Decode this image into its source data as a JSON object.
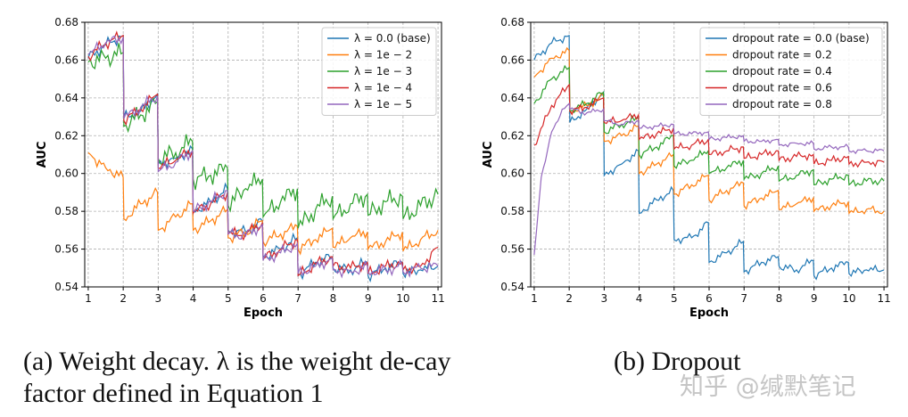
{
  "figure": {
    "caption_a_prefix": "(a)",
    "caption_a_text": "Weight decay. λ is the weight de-cay factor defined in Equation 1",
    "caption_b_prefix": "(b)",
    "caption_b_text": "Dropout",
    "watermark": "知乎 @缄默笔记"
  },
  "chart_data": [
    {
      "type": "line",
      "title": "",
      "xlabel": "Epoch",
      "ylabel": "AUC",
      "xlim": [
        0.9,
        11.1
      ],
      "ylim": [
        0.54,
        0.68
      ],
      "xticks": [
        1,
        2,
        3,
        4,
        5,
        6,
        7,
        8,
        9,
        10,
        11
      ],
      "yticks": [
        0.54,
        0.56,
        0.58,
        0.6,
        0.62,
        0.64,
        0.66,
        0.68
      ],
      "grid": true,
      "legend_position": "top-right",
      "series": [
        {
          "name": "λ = 0.0 (base)",
          "color": "#1f77b4",
          "x": [
            1,
            1.5,
            2,
            2.02,
            2.5,
            2.98,
            3,
            3.5,
            3.98,
            4,
            4.5,
            4.98,
            5,
            5.5,
            5.98,
            6,
            6.5,
            6.98,
            7,
            7.5,
            7.98,
            8,
            8.5,
            8.98,
            9,
            9.5,
            9.98,
            10,
            10.5,
            11
          ],
          "y": [
            0.661,
            0.668,
            0.673,
            0.63,
            0.633,
            0.642,
            0.605,
            0.608,
            0.613,
            0.58,
            0.585,
            0.592,
            0.57,
            0.569,
            0.575,
            0.556,
            0.56,
            0.566,
            0.546,
            0.553,
            0.556,
            0.55,
            0.549,
            0.553,
            0.546,
            0.55,
            0.553,
            0.547,
            0.549,
            0.551
          ]
        },
        {
          "name": "λ = 1e − 2",
          "color": "#ff7f0e",
          "x": [
            1,
            1.5,
            2,
            2.02,
            2.5,
            2.98,
            3,
            3.5,
            3.98,
            4,
            4.5,
            4.98,
            5,
            5.5,
            5.98,
            6,
            6.5,
            6.98,
            7,
            7.5,
            7.98,
            8,
            8.5,
            8.98,
            9,
            9.5,
            9.98,
            10,
            10.5,
            11
          ],
          "y": [
            0.611,
            0.603,
            0.598,
            0.576,
            0.584,
            0.59,
            0.57,
            0.577,
            0.584,
            0.57,
            0.575,
            0.581,
            0.566,
            0.569,
            0.575,
            0.564,
            0.568,
            0.572,
            0.56,
            0.565,
            0.571,
            0.561,
            0.566,
            0.569,
            0.56,
            0.564,
            0.569,
            0.559,
            0.565,
            0.57
          ]
        },
        {
          "name": "λ = 1e − 3",
          "color": "#2ca02c",
          "x": [
            1,
            1.5,
            2,
            2.02,
            2.5,
            2.98,
            3,
            3.5,
            3.98,
            4,
            4.5,
            4.98,
            5,
            5.5,
            5.98,
            6,
            6.5,
            6.98,
            7,
            7.5,
            7.98,
            8,
            8.5,
            8.98,
            9,
            9.5,
            9.98,
            10,
            10.5,
            11
          ],
          "y": [
            0.659,
            0.661,
            0.664,
            0.625,
            0.631,
            0.638,
            0.608,
            0.611,
            0.617,
            0.597,
            0.599,
            0.603,
            0.583,
            0.592,
            0.597,
            0.577,
            0.585,
            0.592,
            0.571,
            0.581,
            0.588,
            0.576,
            0.584,
            0.589,
            0.578,
            0.585,
            0.588,
            0.576,
            0.583,
            0.589
          ]
        },
        {
          "name": "λ = 1e − 4",
          "color": "#d62728",
          "x": [
            1,
            1.5,
            2,
            2.02,
            2.5,
            2.98,
            3,
            3.5,
            3.98,
            4,
            4.5,
            4.98,
            5,
            5.5,
            5.98,
            6,
            6.5,
            6.98,
            7,
            7.5,
            7.98,
            8,
            8.5,
            8.98,
            9,
            9.5,
            9.98,
            10,
            10.5,
            11
          ],
          "y": [
            0.662,
            0.669,
            0.673,
            0.628,
            0.634,
            0.642,
            0.603,
            0.607,
            0.612,
            0.579,
            0.584,
            0.59,
            0.568,
            0.568,
            0.574,
            0.555,
            0.56,
            0.565,
            0.546,
            0.552,
            0.556,
            0.551,
            0.55,
            0.553,
            0.547,
            0.551,
            0.553,
            0.549,
            0.551,
            0.561
          ]
        },
        {
          "name": "λ = 1e − 5",
          "color": "#9467bd",
          "x": [
            1,
            1.5,
            2,
            2.02,
            2.5,
            2.98,
            3,
            3.5,
            3.98,
            4,
            4.5,
            4.98,
            5,
            5.5,
            5.98,
            6,
            6.5,
            6.98,
            7,
            7.5,
            7.98,
            8,
            8.5,
            8.98,
            9,
            9.5,
            9.98,
            10,
            10.5,
            11
          ],
          "y": [
            0.663,
            0.669,
            0.672,
            0.629,
            0.635,
            0.641,
            0.601,
            0.606,
            0.612,
            0.58,
            0.585,
            0.591,
            0.568,
            0.567,
            0.573,
            0.554,
            0.558,
            0.563,
            0.547,
            0.551,
            0.555,
            0.549,
            0.548,
            0.551,
            0.548,
            0.549,
            0.551,
            0.548,
            0.55,
            0.551
          ]
        }
      ]
    },
    {
      "type": "line",
      "title": "",
      "xlabel": "Epoch",
      "ylabel": "AUC",
      "xlim": [
        0.9,
        11.1
      ],
      "ylim": [
        0.54,
        0.68
      ],
      "xticks": [
        1,
        2,
        3,
        4,
        5,
        6,
        7,
        8,
        9,
        10,
        11
      ],
      "yticks": [
        0.54,
        0.56,
        0.58,
        0.6,
        0.62,
        0.64,
        0.66,
        0.68
      ],
      "grid": true,
      "legend_position": "top-right",
      "series": [
        {
          "name": "dropout rate = 0.0 (base)",
          "color": "#1f77b4",
          "x": [
            1,
            1.5,
            2,
            2.02,
            2.5,
            2.98,
            3,
            3.5,
            3.98,
            4,
            4.5,
            4.98,
            5,
            5.5,
            5.98,
            6,
            6.5,
            6.98,
            7,
            7.5,
            7.98,
            8,
            8.5,
            8.98,
            9,
            9.5,
            9.98,
            10,
            10.5,
            11
          ],
          "y": [
            0.66,
            0.669,
            0.673,
            0.627,
            0.634,
            0.643,
            0.599,
            0.605,
            0.612,
            0.579,
            0.586,
            0.591,
            0.565,
            0.566,
            0.574,
            0.553,
            0.558,
            0.564,
            0.548,
            0.553,
            0.556,
            0.551,
            0.549,
            0.554,
            0.546,
            0.55,
            0.553,
            0.547,
            0.549,
            0.549
          ]
        },
        {
          "name": "dropout rate = 0.2",
          "color": "#ff7f0e",
          "x": [
            1,
            1.5,
            2,
            2.02,
            2.5,
            2.98,
            3,
            3.5,
            3.98,
            4,
            4.5,
            4.98,
            5,
            5.5,
            5.98,
            6,
            6.5,
            6.98,
            7,
            7.5,
            7.98,
            8,
            8.5,
            8.98,
            9,
            9.5,
            9.98,
            10,
            10.5,
            11
          ],
          "y": [
            0.651,
            0.661,
            0.665,
            0.633,
            0.636,
            0.641,
            0.617,
            0.62,
            0.625,
            0.6,
            0.605,
            0.61,
            0.589,
            0.594,
            0.599,
            0.586,
            0.591,
            0.595,
            0.583,
            0.587,
            0.591,
            0.581,
            0.584,
            0.587,
            0.58,
            0.583,
            0.585,
            0.579,
            0.581,
            0.58
          ]
        },
        {
          "name": "dropout rate = 0.4",
          "color": "#2ca02c",
          "x": [
            1,
            1.5,
            2,
            2.02,
            2.5,
            2.98,
            3,
            3.5,
            3.98,
            4,
            4.5,
            4.98,
            5,
            5.5,
            5.98,
            6,
            6.5,
            6.98,
            7,
            7.5,
            7.98,
            8,
            8.5,
            8.98,
            9,
            9.5,
            9.98,
            10,
            10.5,
            11
          ],
          "y": [
            0.637,
            0.65,
            0.656,
            0.633,
            0.637,
            0.643,
            0.622,
            0.626,
            0.629,
            0.61,
            0.614,
            0.62,
            0.604,
            0.607,
            0.612,
            0.6,
            0.603,
            0.607,
            0.597,
            0.6,
            0.604,
            0.596,
            0.599,
            0.602,
            0.594,
            0.597,
            0.599,
            0.594,
            0.596,
            0.596
          ]
        },
        {
          "name": "dropout rate = 0.6",
          "color": "#d62728",
          "x": [
            1,
            1.5,
            2,
            2.02,
            2.5,
            2.98,
            3,
            3.5,
            3.98,
            4,
            4.5,
            4.98,
            5,
            5.5,
            5.98,
            6,
            6.5,
            6.98,
            7,
            7.5,
            7.98,
            8,
            8.5,
            8.98,
            9,
            9.5,
            9.98,
            10,
            10.5,
            11
          ],
          "y": [
            0.615,
            0.636,
            0.647,
            0.633,
            0.635,
            0.64,
            0.627,
            0.628,
            0.631,
            0.618,
            0.621,
            0.624,
            0.613,
            0.615,
            0.618,
            0.61,
            0.612,
            0.614,
            0.608,
            0.61,
            0.612,
            0.607,
            0.609,
            0.61,
            0.605,
            0.607,
            0.609,
            0.605,
            0.606,
            0.606
          ]
        },
        {
          "name": "dropout rate = 0.8",
          "color": "#9467bd",
          "x": [
            1,
            1.2,
            1.5,
            1.8,
            2,
            2.02,
            2.5,
            2.98,
            3,
            3.5,
            3.98,
            4,
            4.5,
            4.98,
            5,
            5.5,
            5.98,
            6,
            6.5,
            6.98,
            7,
            7.5,
            7.98,
            8,
            8.5,
            8.98,
            9,
            9.5,
            9.98,
            10,
            10.5,
            11
          ],
          "y": [
            0.557,
            0.598,
            0.622,
            0.634,
            0.637,
            0.634,
            0.632,
            0.634,
            0.628,
            0.626,
            0.628,
            0.624,
            0.625,
            0.626,
            0.621,
            0.621,
            0.622,
            0.618,
            0.619,
            0.62,
            0.617,
            0.617,
            0.618,
            0.615,
            0.616,
            0.616,
            0.613,
            0.614,
            0.614,
            0.612,
            0.612,
            0.612
          ]
        }
      ]
    }
  ]
}
